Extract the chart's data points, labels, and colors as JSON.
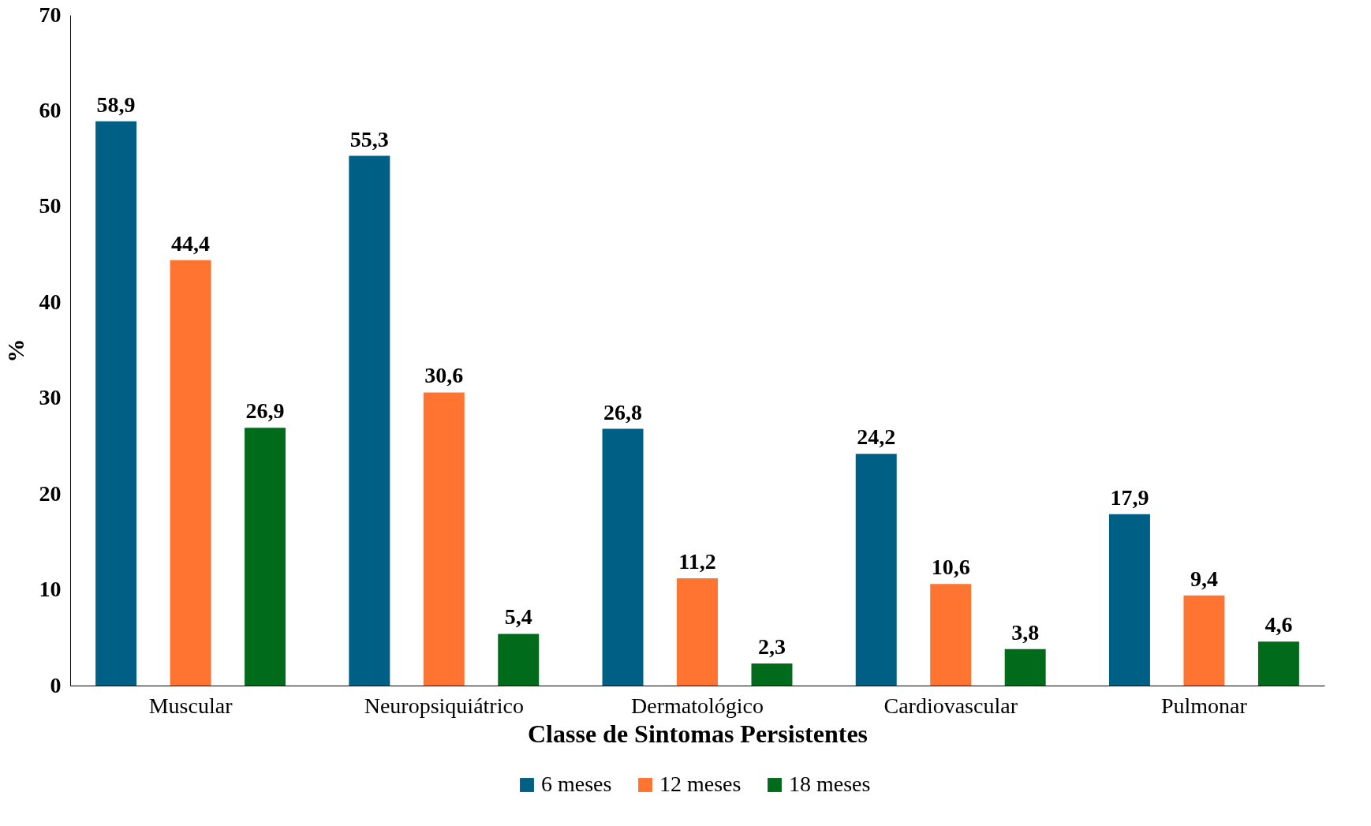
{
  "chart_data": {
    "type": "bar",
    "xlabel": "Classe de Sintomas Persistentes",
    "ylabel": "%",
    "categories": [
      "Muscular",
      "Neuropsiquiátrico",
      "Dermatológico",
      "Cardiovascular",
      "Pulmonar"
    ],
    "series": [
      {
        "name": "6 meses",
        "color": "#005f85",
        "values": [
          58.9,
          55.3,
          26.8,
          24.2,
          17.9
        ],
        "value_labels": [
          "58,9",
          "55,3",
          "26,8",
          "24,2",
          "17,9"
        ]
      },
      {
        "name": "12 meses",
        "color": "#ff7430",
        "values": [
          44.4,
          30.6,
          11.2,
          10.6,
          9.4
        ],
        "value_labels": [
          "44,4",
          "30,6",
          "11,2",
          "10,6",
          "9,4"
        ]
      },
      {
        "name": "18 meses",
        "color": "#006b1b",
        "values": [
          26.9,
          5.4,
          2.3,
          3.8,
          4.6
        ],
        "value_labels": [
          "26,9",
          "5,4",
          "2,3",
          "3,8",
          "4,6"
        ]
      }
    ],
    "ylim": [
      0,
      70
    ],
    "yticks": [
      0,
      10,
      20,
      30,
      40,
      50,
      60,
      70
    ],
    "grid": false,
    "legend": "bottom"
  }
}
